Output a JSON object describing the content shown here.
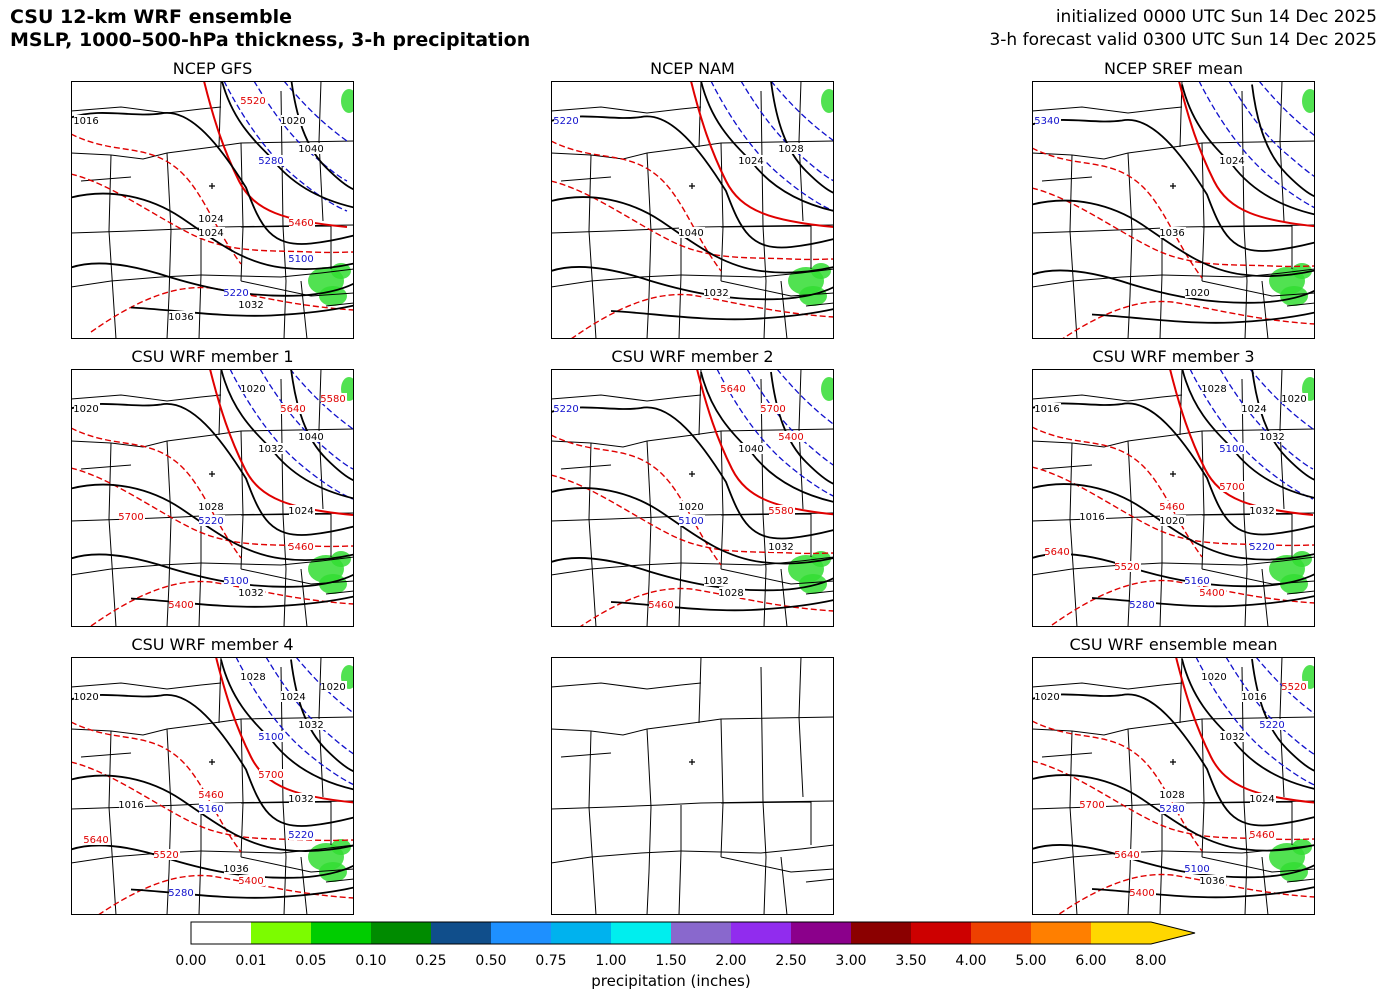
{
  "header": {
    "title_line1": "CSU 12-km WRF ensemble",
    "title_line2": "MSLP, 1000–500-hPa thickness, 3-h precipitation",
    "init_text": "initialized 0000 UTC Sun 14 Dec 2025",
    "valid_text": "3-h forecast valid 0300 UTC Sun 14 Dec 2025"
  },
  "panels": [
    {
      "title": "NCEP GFS",
      "labels": [
        "1016",
        "1024",
        "5220",
        "5280",
        "1040",
        "1036",
        "5100",
        "1032",
        "1024",
        "5460",
        "5520",
        "1020"
      ]
    },
    {
      "title": "NCEP NAM",
      "labels": [
        "5220",
        "1040",
        "1032",
        "1024",
        "1028"
      ]
    },
    {
      "title": "NCEP SREF mean",
      "labels": [
        "5340",
        "1036",
        "1020",
        "1024"
      ]
    },
    {
      "title": "CSU WRF member 1",
      "labels": [
        "1020",
        "5220",
        "5100",
        "1032",
        "1040",
        "5400",
        "5460",
        "1032",
        "1028",
        "1024",
        "1020",
        "5640",
        "5580",
        "5700"
      ]
    },
    {
      "title": "CSU WRF member 2",
      "labels": [
        "5220",
        "5100",
        "1032",
        "1040",
        "5400",
        "5460",
        "1032",
        "1028",
        "1020",
        "5580",
        "5640",
        "5700"
      ]
    },
    {
      "title": "CSU WRF member 3",
      "labels": [
        "1016",
        "1020",
        "5160",
        "5100",
        "1032",
        "5280",
        "5220",
        "5400",
        "5460",
        "1032",
        "1028",
        "1024",
        "1020",
        "1016",
        "5520",
        "5640",
        "5700"
      ]
    },
    {
      "title": "CSU WRF member 4",
      "labels": [
        "1020",
        "5160",
        "1036",
        "5100",
        "1032",
        "5280",
        "5220",
        "5400",
        "5460",
        "1032",
        "1028",
        "1024",
        "1020",
        "1016",
        "5520",
        "5640",
        "5700"
      ]
    },
    {
      "title": "",
      "labels": []
    },
    {
      "title": "CSU WRF ensemble mean",
      "labels": [
        "1020",
        "5280",
        "5100",
        "1032",
        "5220",
        "5400",
        "5460",
        "1036",
        "1028",
        "1024",
        "1020",
        "1016",
        "5520",
        "5700",
        "5640"
      ]
    }
  ],
  "colorbar": {
    "label": "precipitation (inches)",
    "ticks": [
      "0.00",
      "0.01",
      "0.05",
      "0.10",
      "0.25",
      "0.50",
      "0.75",
      "1.00",
      "1.50",
      "2.00",
      "2.50",
      "3.00",
      "3.50",
      "4.00",
      "5.00",
      "6.00",
      "8.00"
    ],
    "colors": [
      "#ffffff",
      "#7cfc00",
      "#00cd00",
      "#008b00",
      "#104e8b",
      "#1e90ff",
      "#00b2ee",
      "#00eeee",
      "#8968cd",
      "#912cee",
      "#8b008b",
      "#8b0000",
      "#cd0000",
      "#ee4000",
      "#ff7f00",
      "#ffd700"
    ]
  },
  "chart_data": {
    "type": "map",
    "title": "CSU 12-km WRF ensemble — MSLP, 1000–500-hPa thickness, 3-h precipitation",
    "colorbar_levels_inches": [
      0.0,
      0.01,
      0.05,
      0.1,
      0.25,
      0.5,
      0.75,
      1.0,
      1.5,
      2.0,
      2.5,
      3.0,
      3.5,
      4.0,
      5.0,
      6.0,
      8.0
    ],
    "colorbar_extend": "max",
    "mslp_contours_hPa": [
      1016,
      1020,
      1024,
      1028,
      1032,
      1036,
      1040
    ],
    "thickness_contours_dam_red": [
      5400,
      5460,
      5520,
      5580,
      5640,
      5700
    ],
    "thickness_contours_dam_blue": [
      5100,
      5160,
      5220,
      5280,
      5340
    ]
  }
}
